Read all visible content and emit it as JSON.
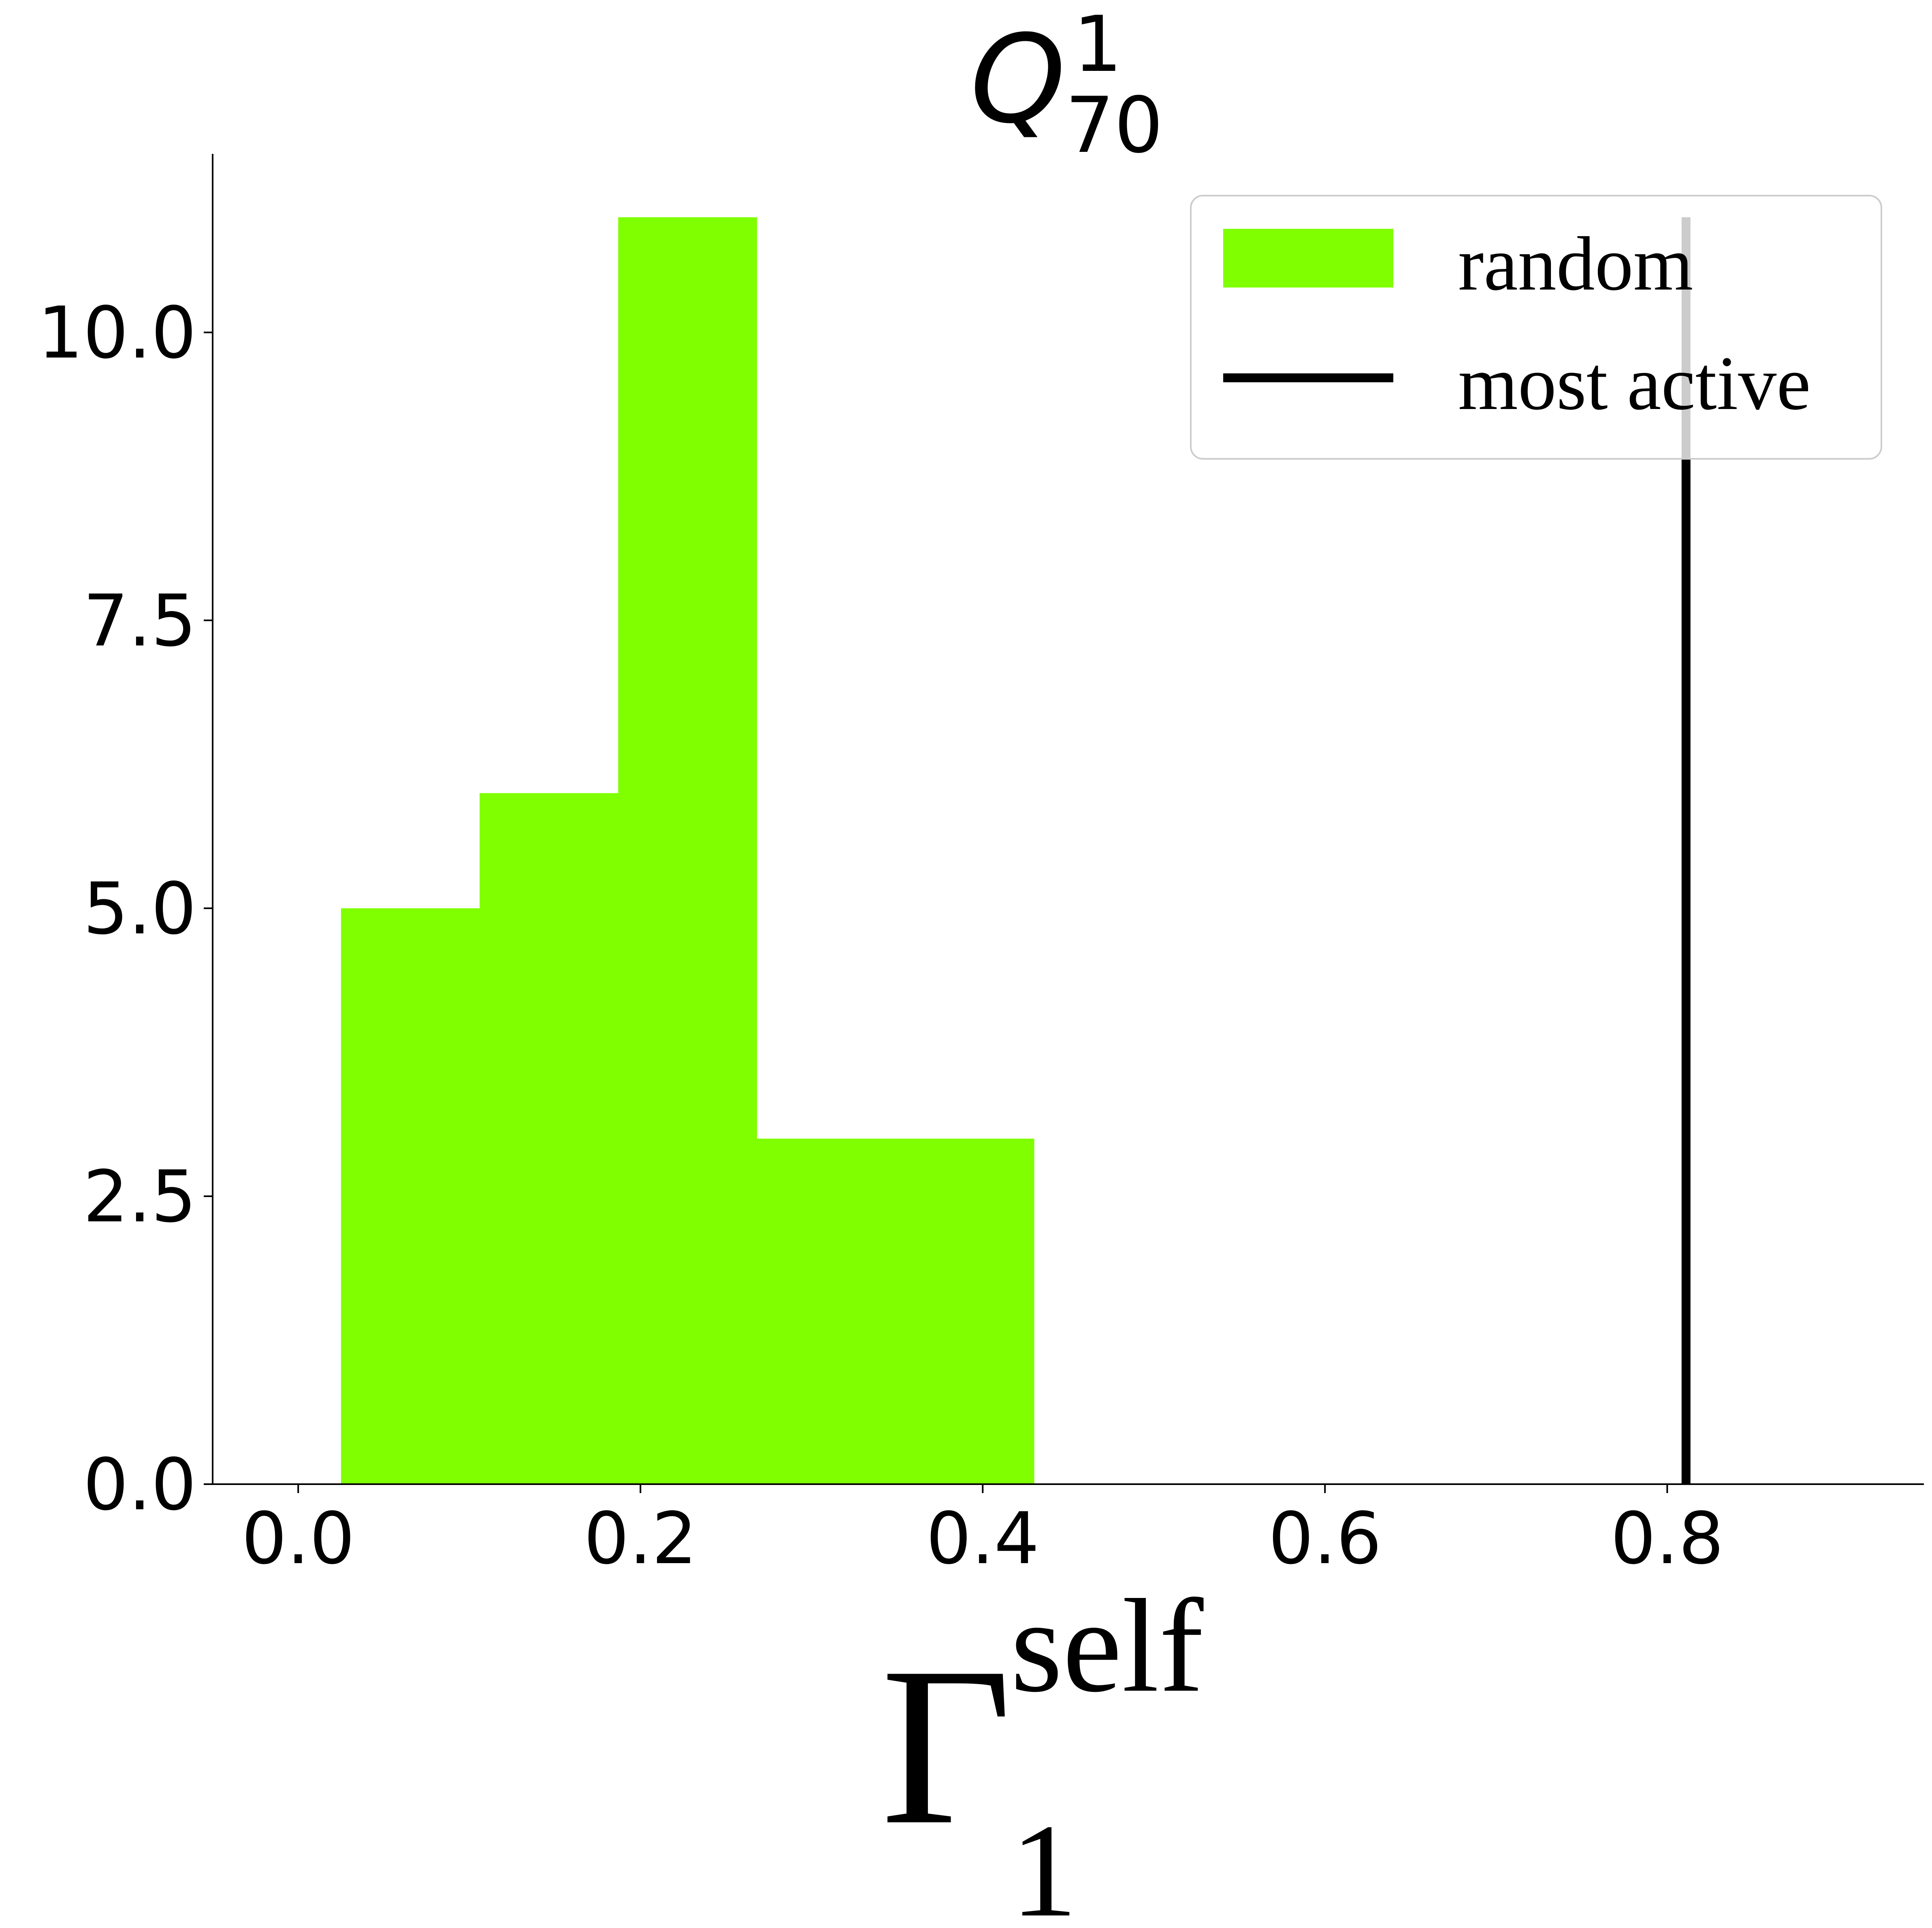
{
  "chart_data": {
    "type": "bar",
    "title": {
      "base": "Q",
      "sup": "1",
      "sub": "70"
    },
    "xlabel": {
      "base": "Γ",
      "sup": "self",
      "sub": "1"
    },
    "ylabel": "",
    "xlim": [
      -0.05,
      0.95
    ],
    "ylim": [
      0,
      11.55
    ],
    "xticks": [
      0.0,
      0.2,
      0.4,
      0.6,
      0.8
    ],
    "xtick_labels": [
      "0.0",
      "0.2",
      "0.4",
      "0.6",
      "0.8"
    ],
    "yticks": [
      0.0,
      2.5,
      5.0,
      7.5,
      10.0
    ],
    "ytick_labels": [
      "0.0",
      "2.5",
      "5.0",
      "7.5",
      "10.0"
    ],
    "bins": [
      {
        "x0": 0.025,
        "x1": 0.106,
        "count": 5
      },
      {
        "x0": 0.106,
        "x1": 0.187,
        "count": 6
      },
      {
        "x0": 0.187,
        "x1": 0.268,
        "count": 11
      },
      {
        "x0": 0.268,
        "x1": 0.349,
        "count": 3
      },
      {
        "x0": 0.349,
        "x1": 0.43,
        "count": 3
      }
    ],
    "vline": {
      "x": 0.811,
      "ymin": 0,
      "ymax": 11,
      "color": "#000000"
    },
    "bar_color": "#7fff00",
    "legend": {
      "placement": "top-right",
      "entries": [
        {
          "label": "random",
          "kind": "patch",
          "color": "#7fff00"
        },
        {
          "label": "most active",
          "kind": "line",
          "color": "#000000"
        }
      ]
    },
    "grid": false
  }
}
